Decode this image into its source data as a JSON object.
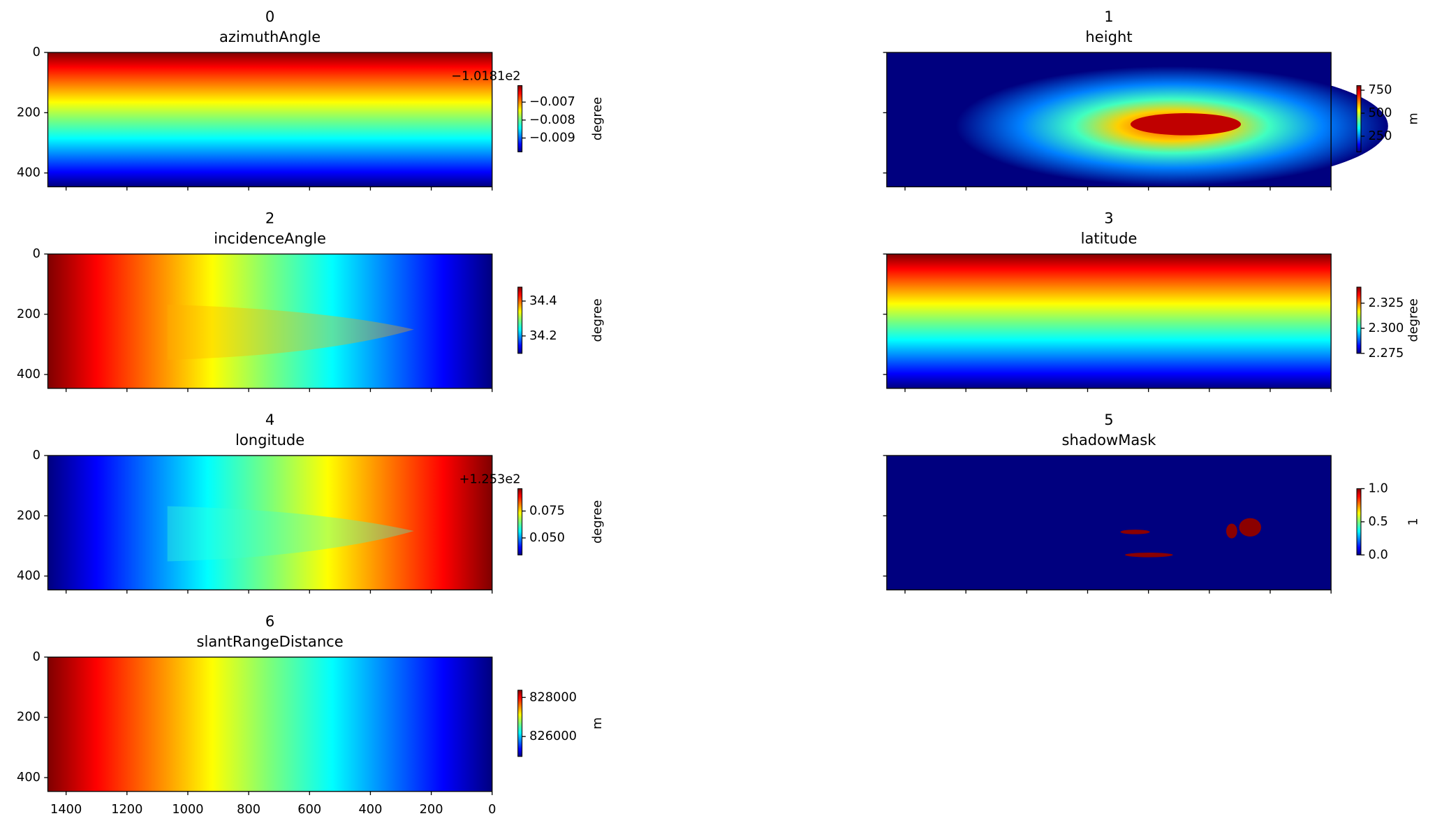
{
  "chart_data": {
    "type": "image-grid",
    "colormap": "jet",
    "xlim": [
      1460,
      0
    ],
    "xticks": [
      1400,
      1200,
      1000,
      800,
      600,
      400,
      200,
      0
    ],
    "ylim": [
      446,
      0
    ],
    "yticks": [
      0,
      200,
      400
    ],
    "panels": [
      {
        "index": 0,
        "title": "azimuthAngle",
        "clabel": "degree",
        "offset": "−1.0181e2",
        "clim": [
          -0.00977,
          -0.00608
        ],
        "cticks": [
          {
            "value": -0.007,
            "label": "−0.007"
          },
          {
            "value": -0.008,
            "label": "−0.008"
          },
          {
            "value": -0.009,
            "label": "−0.009"
          }
        ]
      },
      {
        "index": 1,
        "title": "height",
        "clabel": "m",
        "clim": [
          80,
          800
        ],
        "cticks": [
          750,
          500,
          250
        ]
      },
      {
        "index": 2,
        "title": "incidenceAngle",
        "clabel": "degree",
        "clim": [
          34.1,
          34.48
        ],
        "cticks": [
          34.4,
          34.2
        ]
      },
      {
        "index": 3,
        "title": "latitude",
        "clabel": "degree",
        "clim": [
          2.275,
          2.341
        ],
        "cticks": [
          2.325,
          {
            "value": 2.3,
            "label": "2.300"
          },
          2.275
        ]
      },
      {
        "index": 4,
        "title": "longitude",
        "clabel": "degree",
        "offset": "+1.253e2",
        "clim": [
          0.0342,
          0.0958
        ],
        "cticks": [
          0.075,
          {
            "value": 0.05,
            "label": "0.050"
          }
        ]
      },
      {
        "index": 5,
        "title": "shadowMask",
        "clabel": "1",
        "clim": [
          0,
          1
        ],
        "cticks": [
          {
            "value": 1,
            "label": "1.0"
          },
          {
            "value": 0.5,
            "label": "0.5"
          },
          {
            "value": 0,
            "label": "0.0"
          }
        ]
      },
      {
        "index": 6,
        "title": "slantRangeDistance",
        "clabel": "m",
        "clim": [
          824980,
          828370
        ],
        "cticks": [
          828000,
          826000
        ]
      }
    ]
  }
}
